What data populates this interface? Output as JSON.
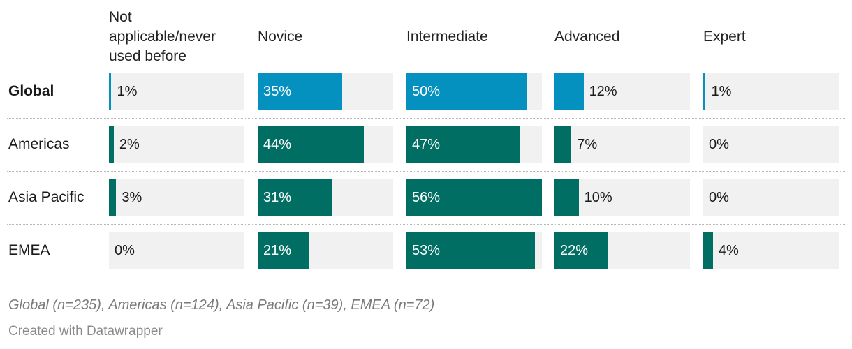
{
  "chart_data": {
    "type": "table",
    "categories": [
      "Not applicable/never used before",
      "Novice",
      "Intermediate",
      "Advanced",
      "Expert"
    ],
    "unit": "%",
    "xlim": [
      0,
      56
    ],
    "series": [
      {
        "name": "Global",
        "values": [
          1,
          35,
          50,
          12,
          1
        ]
      },
      {
        "name": "Americas",
        "values": [
          2,
          44,
          47,
          7,
          0
        ]
      },
      {
        "name": "Asia Pacific",
        "values": [
          3,
          31,
          56,
          10,
          0
        ]
      },
      {
        "name": "EMEA",
        "values": [
          0,
          21,
          53,
          22,
          4
        ]
      }
    ],
    "colors": {
      "highlight": "#0591c0",
      "default": "#006e63",
      "cell_background": "#f1f1f1"
    },
    "highlight_series": "Global"
  },
  "note": "Global (n=235), Americas (n=124), Asia Pacific (n=39), EMEA (n=72)",
  "credit": "Created with Datawrapper"
}
